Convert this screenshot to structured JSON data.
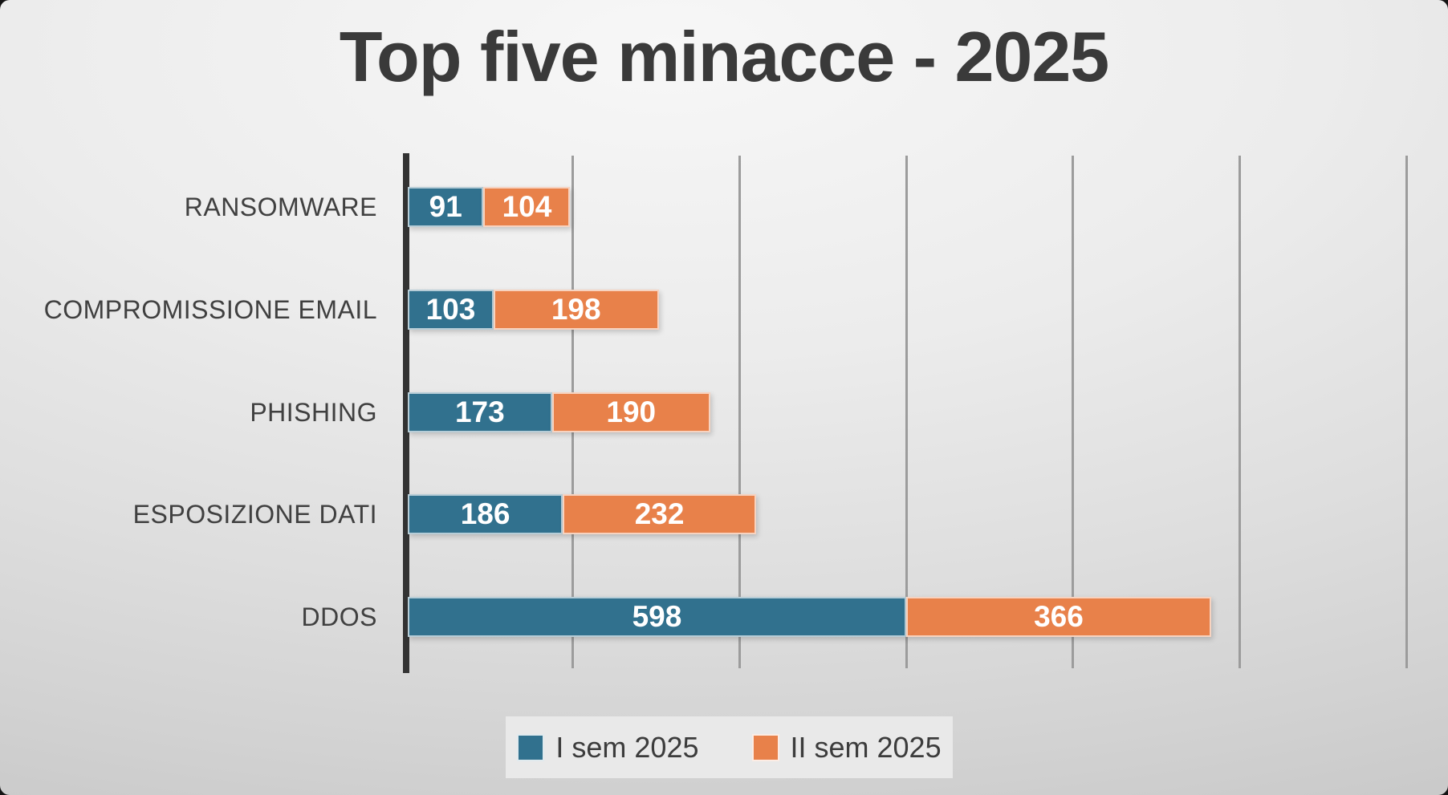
{
  "chart_data": {
    "type": "bar",
    "orientation": "horizontal",
    "stacked": true,
    "title": "Top five minacce - 2025",
    "categories": [
      "RANSOMWARE",
      "COMPROMISSIONE EMAIL",
      "PHISHING",
      "ESPOSIZIONE DATI",
      "DDOS"
    ],
    "series": [
      {
        "name": "I sem 2025",
        "color": "#31718e",
        "values": [
          91,
          103,
          173,
          186,
          598
        ]
      },
      {
        "name": "II sem 2025",
        "color": "#e8814a",
        "values": [
          104,
          198,
          190,
          232,
          366
        ]
      }
    ],
    "x_axis": {
      "min": 0,
      "max": 1200,
      "gridline_step": 200,
      "tick_labels_visible": false,
      "grid": true
    },
    "legend_position": "bottom",
    "data_labels": "inside-center",
    "data_label_color": "#ffffff",
    "title_color": "#3a3a3a",
    "category_label_color": "#404040",
    "gridline_color": "#9c9c9c",
    "axis_line_color": "#333333",
    "legend_box_color": "#e9e9e9"
  }
}
